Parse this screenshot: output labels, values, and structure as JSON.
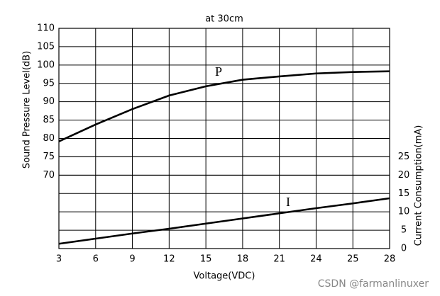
{
  "chart_data": {
    "type": "line",
    "title": "at 30cm",
    "x_label": "Voltage(VDC)",
    "y_label": "Sound Pressure Level(dB)",
    "y2_label": "Current Consumption(mA)",
    "categories": [
      "3",
      "6",
      "9",
      "12",
      "15",
      "18",
      "21",
      "24",
      "25",
      "28"
    ],
    "series": [
      {
        "name": "P",
        "color": "#000000",
        "values": [
          79.2,
          83.8,
          88.0,
          91.7,
          94.2,
          96.0,
          96.9,
          97.7,
          98.1,
          98.3
        ]
      },
      {
        "name": "I",
        "color": "#000000",
        "axis": "y2",
        "values": [
          1.3,
          2.7,
          4.1,
          5.4,
          6.8,
          8.2,
          9.6,
          11.0,
          12.3,
          13.7
        ]
      }
    ],
    "ylim": [
      50,
      110
    ],
    "yticks": [
      70,
      75,
      80,
      85,
      90,
      95,
      100,
      105,
      110
    ],
    "y2lim": [
      0,
      60
    ],
    "y2ticks": [
      0,
      5,
      10,
      15,
      20,
      25
    ],
    "grid": true,
    "watermark": "CSDN @farmanlinuxer"
  }
}
